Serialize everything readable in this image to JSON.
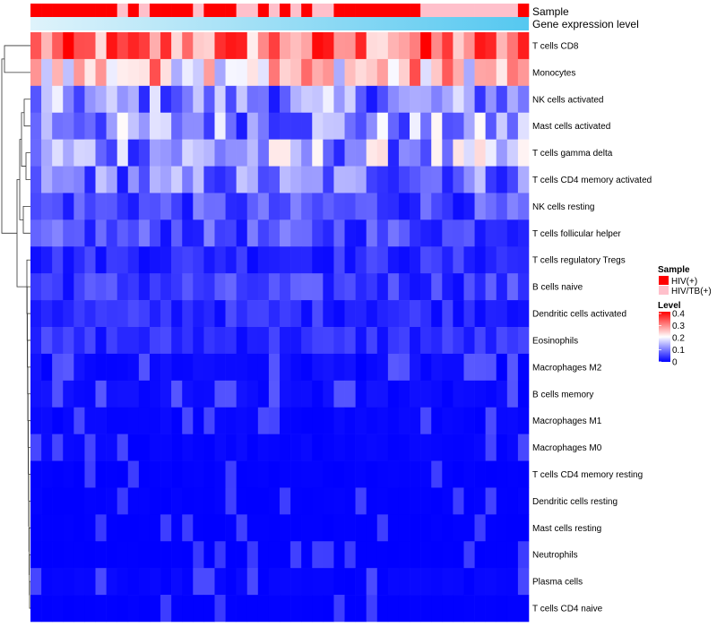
{
  "chart_data": {
    "type": "heatmap",
    "title": "",
    "annotations": {
      "sample_label": "Sample",
      "expression_label": "Gene expression level"
    },
    "rows": [
      "T cells CD8",
      "Monocytes",
      "NK cells activated",
      "Mast cells activated",
      "T cells gamma delta",
      "T cells CD4 memory activated",
      "NK cells resting",
      "T cells follicular helper",
      "T cells regulatory  Tregs",
      "B cells naive",
      "Dendritic cells activated",
      "Eosinophils",
      "Macrophages M2",
      "B cells memory",
      "Macrophages M1",
      "Macrophages M0",
      "T cells CD4 memory resting",
      "Dendritic cells resting",
      "Mast cells resting",
      "Neutrophils",
      "Plasma cells",
      "T cells CD4 naive"
    ],
    "row_mean_values": [
      0.3,
      0.24,
      0.09,
      0.1,
      0.11,
      0.08,
      0.05,
      0.05,
      0.03,
      0.04,
      0.03,
      0.03,
      0.02,
      0.02,
      0.01,
      0.01,
      0.004,
      0.004,
      0.002,
      0.001,
      0.01,
      0.002
    ],
    "n_samples": 46,
    "sample_groups": [
      "HIV(+)",
      "HIV(+)",
      "HIV(+)",
      "HIV(+)",
      "HIV(+)",
      "HIV(+)",
      "HIV(+)",
      "HIV(+)",
      "HIV/TB(+)",
      "HIV(+)",
      "HIV/TB(+)",
      "HIV(+)",
      "HIV(+)",
      "HIV(+)",
      "HIV(+)",
      "HIV/TB(+)",
      "HIV(+)",
      "HIV(+)",
      "HIV(+)",
      "HIV/TB(+)",
      "HIV/TB(+)",
      "HIV(+)",
      "HIV/TB(+)",
      "HIV(+)",
      "HIV/TB(+)",
      "HIV(+)",
      "HIV/TB(+)",
      "HIV/TB(+)",
      "HIV(+)",
      "HIV(+)",
      "HIV(+)",
      "HIV(+)",
      "HIV(+)",
      "HIV(+)",
      "HIV(+)",
      "HIV(+)",
      "HIV/TB(+)",
      "HIV/TB(+)",
      "HIV/TB(+)",
      "HIV/TB(+)",
      "HIV/TB(+)",
      "HIV/TB(+)",
      "HIV/TB(+)",
      "HIV/TB(+)",
      "HIV/TB(+)",
      "HIV(+)"
    ],
    "legend": {
      "sample_title": "Sample",
      "sample_levels": [
        {
          "name": "HIV(+)",
          "color": "#ff0000"
        },
        {
          "name": "HIV/TB(+)",
          "color": "#ffc0cb"
        }
      ],
      "level_title": "Level",
      "level_ticks": [
        "0.4",
        "0.3",
        "0.2",
        "0.1",
        "0"
      ],
      "level_range": [
        0,
        0.4
      ],
      "placement": "right"
    },
    "color_scale": {
      "low": "#0000ff",
      "mid": "#ffffff",
      "high": "#ff0000",
      "mid_value": 0.2
    }
  },
  "colors": {
    "expression_bar_start": "#dff3fb",
    "expression_bar_end": "#55c8f0"
  }
}
